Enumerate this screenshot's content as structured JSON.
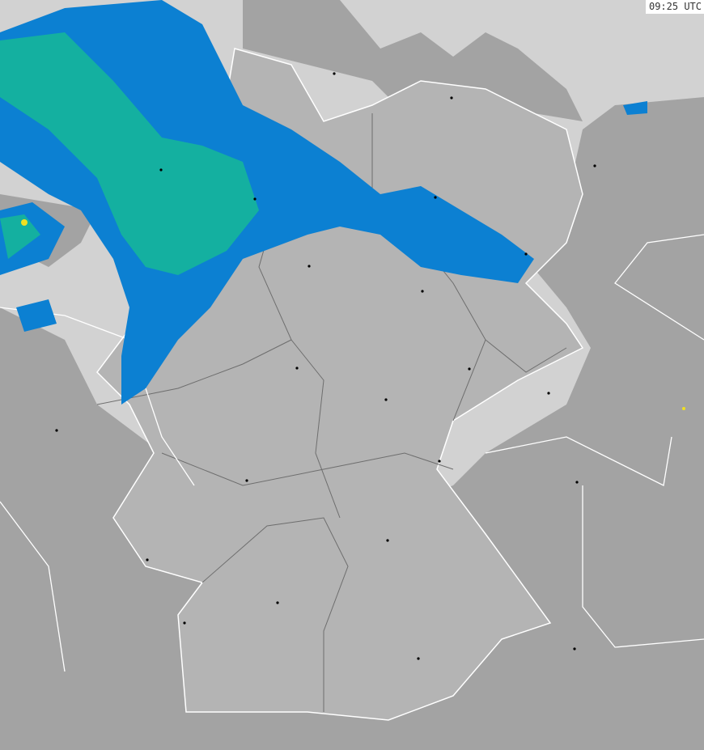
{
  "map": {
    "timestamp": "09:25 UTC",
    "colors": {
      "sea": "#d2d2d2",
      "land_germany": "#b4b4b4",
      "land_neighbors": "#a3a3a3",
      "border": "#ffffff",
      "state_border": "#6e6e6e",
      "rain_light": "#0c80d2",
      "rain_moderate": "#14b0a0",
      "rain_heavy": "#f0e020",
      "city": "#000000"
    }
  }
}
